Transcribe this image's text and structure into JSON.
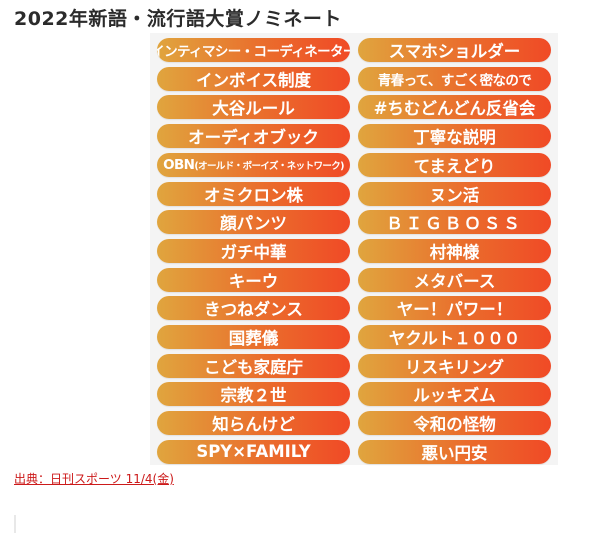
{
  "title": "2022年新語・流行語大賞ノミネート",
  "nominees": [
    {
      "main": "インティマシー・コーディネーター",
      "sub": ""
    },
    {
      "main": "スマホショルダー",
      "sub": ""
    },
    {
      "main": "インボイス制度",
      "sub": ""
    },
    {
      "main": "青春って、すごく密なので",
      "sub": ""
    },
    {
      "main": "大谷ルール",
      "sub": ""
    },
    {
      "main": "#ちむどんどん反省会",
      "sub": ""
    },
    {
      "main": "オーディオブック",
      "sub": ""
    },
    {
      "main": "丁寧な説明",
      "sub": ""
    },
    {
      "main": "OBN",
      "sub": "(オールド・ボーイズ・ネットワーク)"
    },
    {
      "main": "てまえどり",
      "sub": ""
    },
    {
      "main": "オミクロン株",
      "sub": ""
    },
    {
      "main": "ヌン活",
      "sub": ""
    },
    {
      "main": "顔パンツ",
      "sub": ""
    },
    {
      "main": "ＢＩＧＢＯＳＳ",
      "sub": ""
    },
    {
      "main": "ガチ中華",
      "sub": ""
    },
    {
      "main": "村神様",
      "sub": ""
    },
    {
      "main": "キーウ",
      "sub": ""
    },
    {
      "main": "メタバース",
      "sub": ""
    },
    {
      "main": "きつねダンス",
      "sub": ""
    },
    {
      "main": "ヤー！パワー！",
      "sub": ""
    },
    {
      "main": "国葬儀",
      "sub": ""
    },
    {
      "main": "ヤクルト１０００",
      "sub": ""
    },
    {
      "main": "こども家庭庁",
      "sub": ""
    },
    {
      "main": "リスキリング",
      "sub": ""
    },
    {
      "main": "宗教２世",
      "sub": ""
    },
    {
      "main": "ルッキズム",
      "sub": ""
    },
    {
      "main": "知らんけど",
      "sub": ""
    },
    {
      "main": "令和の怪物",
      "sub": ""
    },
    {
      "main": "SPY×FAMILY",
      "sub": ""
    },
    {
      "main": "悪い円安",
      "sub": ""
    }
  ],
  "source": "出典：日刊スポーツ 11/4(金)",
  "colors": {
    "pill_start": "#e0a53e",
    "pill_end": "#f04a26",
    "source_link": "#cc1a1a"
  }
}
